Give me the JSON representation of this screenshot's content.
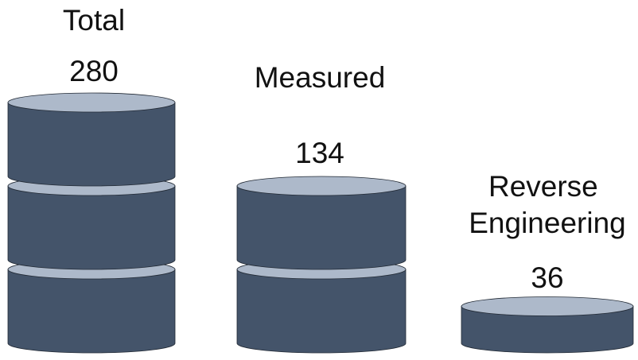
{
  "chart_data": {
    "type": "bar",
    "style": "stacked cylinders",
    "categories": [
      "Total",
      "Measured",
      "Reverse Engineering"
    ],
    "category_lines": [
      [
        "Total"
      ],
      [
        "Measured"
      ],
      [
        "Reverse",
        "Engineering"
      ]
    ],
    "values": [
      280,
      134,
      36
    ],
    "value_labels": [
      "280",
      "134",
      "36"
    ],
    "cylinder_counts": [
      3,
      2,
      0.5
    ],
    "title": "",
    "xlabel": "",
    "ylabel": "",
    "legend": "none",
    "grid": false,
    "colors": {
      "body": "#44546a",
      "top": "#adb9ca",
      "edge": "#222a35",
      "background": "#ffffff"
    }
  }
}
